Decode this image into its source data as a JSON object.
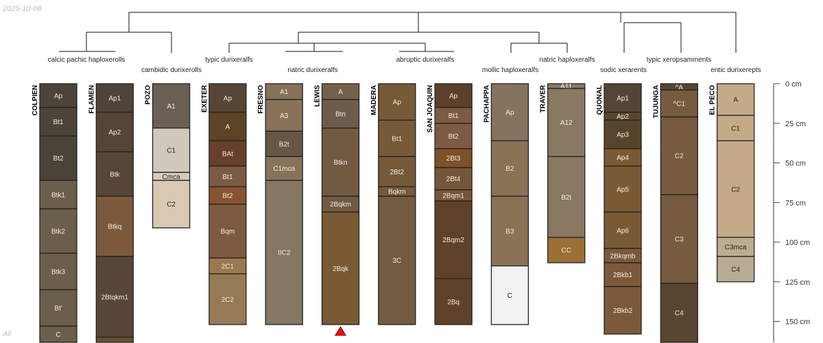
{
  "date_stamp": "2025-10-08",
  "footer_label": "All",
  "depth_axis": {
    "unit": "cm",
    "ticks": [
      0,
      25,
      50,
      75,
      100,
      125,
      150
    ],
    "tick_labels": [
      "0 cm",
      "25 cm",
      "50 cm",
      "75 cm",
      "100 cm",
      "125 cm",
      "150 cm"
    ]
  },
  "taxonomy_labels": [
    "calcic pachic haploxerolls",
    "cambidic durixerolls",
    "typic durixeralfs",
    "natric durixeralfs",
    "abruptic durixeralfs",
    "mollic haploxeralfs",
    "natric haploxeralfs",
    "sodic xerarents",
    "typic xeropsamments",
    "entic durixerepts"
  ],
  "marker": {
    "profile": "LEWIS",
    "color": "#ff0000",
    "shape": "triangle"
  },
  "profiles": [
    {
      "name": "COLPIEN",
      "horizons": [
        {
          "name": "Ap",
          "top": 0,
          "bottom": 15,
          "color": "#4d433a"
        },
        {
          "name": "Bt1",
          "top": 15,
          "bottom": 33,
          "color": "#4c443b"
        },
        {
          "name": "Bt2",
          "top": 33,
          "bottom": 61,
          "color": "#4a433a"
        },
        {
          "name": "Btk1",
          "top": 61,
          "bottom": 79,
          "color": "#6b5e4a"
        },
        {
          "name": "Btk2",
          "top": 79,
          "bottom": 107,
          "color": "#6b5e4a"
        },
        {
          "name": "Btk3",
          "top": 107,
          "bottom": 130,
          "color": "#6b5e4a"
        },
        {
          "name": "Bt'",
          "top": 130,
          "bottom": 153,
          "color": "#6b5e4a"
        },
        {
          "name": "C",
          "top": 153,
          "bottom": 175,
          "color": "#6b5e4a"
        }
      ]
    },
    {
      "name": "FLAMEN",
      "horizons": [
        {
          "name": "Ap1",
          "top": 0,
          "bottom": 18,
          "color": "#4e4439"
        },
        {
          "name": "Ap2",
          "top": 18,
          "bottom": 43,
          "color": "#554536"
        },
        {
          "name": "Btk",
          "top": 43,
          "bottom": 71,
          "color": "#574636"
        },
        {
          "name": "Btkq",
          "top": 71,
          "bottom": 109,
          "color": "#7b5a3b"
        },
        {
          "name": "2Btqkm1",
          "top": 109,
          "bottom": 160,
          "color": "#574638"
        },
        {
          "name": "",
          "top": 160,
          "bottom": 175,
          "color": "#6b4e30"
        }
      ]
    },
    {
      "name": "POZO",
      "horizons": [
        {
          "name": "A1",
          "top": 0,
          "bottom": 28,
          "color": "#6b6054"
        },
        {
          "name": "C1",
          "top": 28,
          "bottom": 56,
          "color": "#d0c8bb"
        },
        {
          "name": "Cmca",
          "top": 56,
          "bottom": 61,
          "color": "#d4cbbd"
        },
        {
          "name": "C2",
          "top": 61,
          "bottom": 91,
          "color": "#d9c9b3"
        }
      ]
    },
    {
      "name": "EXETER",
      "horizons": [
        {
          "name": "Ap",
          "top": 0,
          "bottom": 18,
          "color": "#574536"
        },
        {
          "name": "A",
          "top": 18,
          "bottom": 36,
          "color": "#5e4427"
        },
        {
          "name": "BAt",
          "top": 36,
          "bottom": 52,
          "color": "#683f2b"
        },
        {
          "name": "Bt1",
          "top": 52,
          "bottom": 65,
          "color": "#7d5a44"
        },
        {
          "name": "Bt2",
          "top": 65,
          "bottom": 76,
          "color": "#885331"
        },
        {
          "name": "Bqm",
          "top": 76,
          "bottom": 110,
          "color": "#7d5a41"
        },
        {
          "name": "2C1",
          "top": 110,
          "bottom": 120,
          "color": "#9a7952"
        },
        {
          "name": "2C2",
          "top": 120,
          "bottom": 152,
          "color": "#967a55"
        }
      ]
    },
    {
      "name": "FRESNO",
      "horizons": [
        {
          "name": "A1",
          "top": 0,
          "bottom": 10,
          "color": "#86715a"
        },
        {
          "name": "A3",
          "top": 10,
          "bottom": 30,
          "color": "#88735a"
        },
        {
          "name": "B2t",
          "top": 30,
          "bottom": 46,
          "color": "#645745"
        },
        {
          "name": "C1mca",
          "top": 46,
          "bottom": 61,
          "color": "#88735a"
        },
        {
          "name": "IIC2",
          "top": 61,
          "bottom": 152,
          "color": "#857763"
        }
      ]
    },
    {
      "name": "LEWIS",
      "horizons": [
        {
          "name": "A",
          "top": 0,
          "bottom": 10,
          "color": "#75614b"
        },
        {
          "name": "Btn",
          "top": 10,
          "bottom": 28,
          "color": "#6d5c4d"
        },
        {
          "name": "Btkn",
          "top": 28,
          "bottom": 71,
          "color": "#725a42"
        },
        {
          "name": "2Bqkm",
          "top": 71,
          "bottom": 81,
          "color": "#725a42"
        },
        {
          "name": "2Bqk",
          "top": 81,
          "bottom": 152,
          "color": "#7a5a35"
        }
      ]
    },
    {
      "name": "MADERA",
      "horizons": [
        {
          "name": "Ap",
          "top": 0,
          "bottom": 23,
          "color": "#775a37"
        },
        {
          "name": "Bt1",
          "top": 23,
          "bottom": 46,
          "color": "#775a37"
        },
        {
          "name": "2Bt2",
          "top": 46,
          "bottom": 65,
          "color": "#755a3a"
        },
        {
          "name": "Bqkm",
          "top": 65,
          "bottom": 71,
          "color": "#755a3a"
        },
        {
          "name": "3C",
          "top": 71,
          "bottom": 152,
          "color": "#745c42"
        }
      ]
    },
    {
      "name": "SAN JOAQUIN",
      "horizons": [
        {
          "name": "Ap",
          "top": 0,
          "bottom": 15,
          "color": "#5d4029"
        },
        {
          "name": "Bt1",
          "top": 15,
          "bottom": 25,
          "color": "#7e5a44"
        },
        {
          "name": "Bt2",
          "top": 25,
          "bottom": 41,
          "color": "#7e5a44"
        },
        {
          "name": "2Bt3",
          "top": 41,
          "bottom": 53,
          "color": "#7e5128"
        },
        {
          "name": "2Bt4",
          "top": 53,
          "bottom": 67,
          "color": "#765639"
        },
        {
          "name": "2Bqm1",
          "top": 67,
          "bottom": 74,
          "color": "#765639"
        },
        {
          "name": "2Bqm2",
          "top": 74,
          "bottom": 123,
          "color": "#5f4129"
        },
        {
          "name": "2Bq",
          "top": 123,
          "bottom": 152,
          "color": "#5f4129"
        }
      ]
    },
    {
      "name": "PACHAPPA",
      "horizons": [
        {
          "name": "Ap",
          "top": 0,
          "bottom": 36,
          "color": "#85735f"
        },
        {
          "name": "B2",
          "top": 36,
          "bottom": 71,
          "color": "#8a7256"
        },
        {
          "name": "B3",
          "top": 71,
          "bottom": 115,
          "color": "#8a7256"
        },
        {
          "name": "C",
          "top": 115,
          "bottom": 152,
          "color": "#f2f2f2"
        }
      ]
    },
    {
      "name": "TRAVER",
      "horizons": [
        {
          "name": "A11",
          "top": 0,
          "bottom": 3,
          "color": "#8a7863"
        },
        {
          "name": "A12",
          "top": 3,
          "bottom": 46,
          "color": "#8a7863"
        },
        {
          "name": "B2t",
          "top": 46,
          "bottom": 97,
          "color": "#8a7863"
        },
        {
          "name": "CC",
          "top": 97,
          "bottom": 113,
          "color": "#9a7035"
        }
      ]
    },
    {
      "name": "QUONAL",
      "horizons": [
        {
          "name": "Ap1",
          "top": 0,
          "bottom": 18,
          "color": "#534536"
        },
        {
          "name": "Ap2",
          "top": 18,
          "bottom": 23,
          "color": "#5a4530"
        },
        {
          "name": "Ap3",
          "top": 23,
          "bottom": 41,
          "color": "#58442d"
        },
        {
          "name": "Ap4",
          "top": 41,
          "bottom": 52,
          "color": "#7a5a35"
        },
        {
          "name": "Ap5",
          "top": 52,
          "bottom": 81,
          "color": "#7a5a35"
        },
        {
          "name": "Ap6",
          "top": 81,
          "bottom": 104,
          "color": "#7a5a35"
        },
        {
          "name": "2Bkqmb",
          "top": 104,
          "bottom": 113,
          "color": "#7a5a3a"
        },
        {
          "name": "2Bkb1",
          "top": 113,
          "bottom": 128,
          "color": "#7a5a3a"
        },
        {
          "name": "2Bkb2",
          "top": 128,
          "bottom": 158,
          "color": "#7a5a3a"
        }
      ]
    },
    {
      "name": "TUJUNGA",
      "horizons": [
        {
          "name": "^A",
          "top": 0,
          "bottom": 4,
          "color": "#5a4530"
        },
        {
          "name": "^C1",
          "top": 4,
          "bottom": 21,
          "color": "#765b40"
        },
        {
          "name": "C2",
          "top": 21,
          "bottom": 70,
          "color": "#765b40"
        },
        {
          "name": "C3",
          "top": 70,
          "bottom": 126,
          "color": "#765b40"
        },
        {
          "name": "C4",
          "top": 126,
          "bottom": 175,
          "color": "#5a4530"
        }
      ]
    },
    {
      "name": "EL PECO",
      "horizons": [
        {
          "name": "A",
          "top": 0,
          "bottom": 20,
          "color": "#c4aa89"
        },
        {
          "name": "C1",
          "top": 20,
          "bottom": 36,
          "color": "#c4aa89"
        },
        {
          "name": "C2",
          "top": 36,
          "bottom": 97,
          "color": "#c4aa89"
        },
        {
          "name": "C3mca",
          "top": 97,
          "bottom": 109,
          "color": "#bcad91"
        },
        {
          "name": "C4",
          "top": 109,
          "bottom": 125,
          "color": "#b9ab91"
        }
      ]
    }
  ]
}
